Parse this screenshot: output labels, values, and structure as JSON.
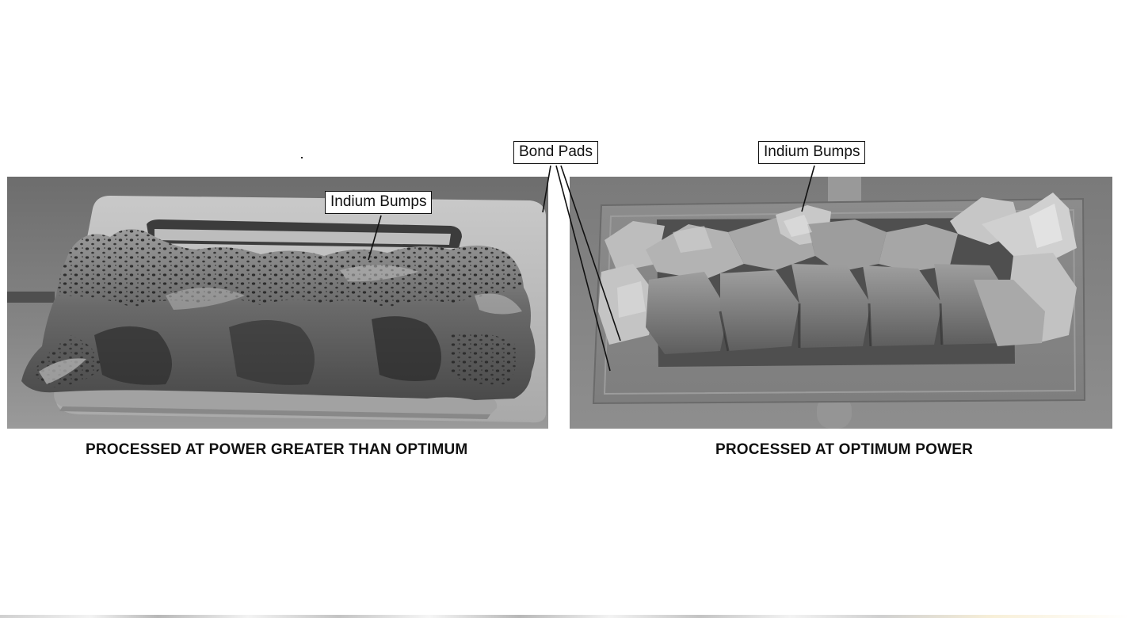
{
  "left_panel": {
    "caption": "PROCESSED AT POWER GREATER THAN OPTIMUM",
    "callout": "Indium Bumps"
  },
  "right_panel": {
    "caption": "PROCESSED AT OPTIMUM POWER",
    "callout": "Indium Bumps"
  },
  "shared_callout": "Bond Pads",
  "colors": {
    "background": "#ffffff",
    "sem_gray_dark": "#3a3a3a",
    "sem_gray_mid": "#7a7a7a",
    "sem_gray_light": "#b8b8b8",
    "label_text": "#111111"
  }
}
